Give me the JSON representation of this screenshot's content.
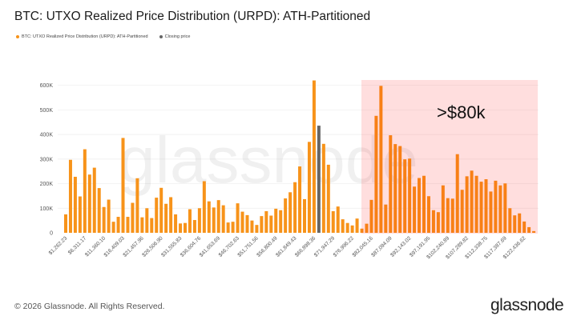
{
  "title": "BTC: UTXO Realized Price Distribution (URPD): ATH-Partitioned",
  "legend": [
    {
      "label": "BTC: UTXO Realized Price Distribution (URPD): ATH-Partitioned",
      "color": "#f7931a"
    },
    {
      "label": "Closing price",
      "color": "#666666"
    }
  ],
  "watermark": "glassnode",
  "annotation": ">$80k",
  "footer": "© 2026 Glassnode. All Rights Reserved.",
  "logo": "glassnode",
  "chart_data": {
    "type": "bar",
    "title": "BTC: UTXO Realized Price Distribution (URPD): ATH-Partitioned",
    "ylim": [
      0,
      600000
    ],
    "yticks": [
      "0",
      "100K",
      "200K",
      "300K",
      "400K",
      "500K",
      "600K"
    ],
    "xtick_labels": [
      "$1,262.23",
      "$6,311.17",
      "$11,360.10",
      "$16,409.03",
      "$21,457.96",
      "$26,506.90",
      "$31,555.83",
      "$36,604.76",
      "$41,653.69",
      "$46,702.63",
      "$51,751.56",
      "$56,800.49",
      "$61,849.43",
      "$66,898.36",
      "$71,947.29",
      "$76,996.22",
      "$82,045.16",
      "$87,094.09",
      "$92,143.02",
      "$97,191.95",
      "$102,240.89",
      "$107,289.82",
      "$112,338.75",
      "$117,387.69",
      "$122,436.62"
    ],
    "values_k": [
      75,
      297,
      228,
      148,
      340,
      237,
      265,
      182,
      105,
      135,
      45,
      65,
      386,
      65,
      122,
      222,
      63,
      100,
      60,
      143,
      183,
      118,
      145,
      75,
      38,
      40,
      96,
      52,
      100,
      210,
      128,
      103,
      133,
      112,
      42,
      45,
      120,
      86,
      72,
      50,
      32,
      68,
      88,
      70,
      98,
      92,
      140,
      165,
      206,
      270,
      137,
      370,
      620,
      436,
      362,
      277,
      88,
      107,
      55,
      40,
      30,
      58,
      17,
      37,
      134,
      476,
      598,
      115,
      397,
      361,
      353,
      299,
      302,
      188,
      223,
      232,
      149,
      92,
      84,
      193,
      141,
      139,
      320,
      175,
      230,
      253,
      232,
      208,
      218,
      168,
      212,
      193,
      201,
      100,
      71,
      79,
      46,
      23,
      7
    ],
    "closing_price_bar_index": 53,
    "highlight_region": {
      "from_price": 80000,
      "label": ">$80k",
      "color": "#ff0000"
    },
    "bar_color": "#f7931a",
    "closing_color": "#666666",
    "grid": true
  }
}
